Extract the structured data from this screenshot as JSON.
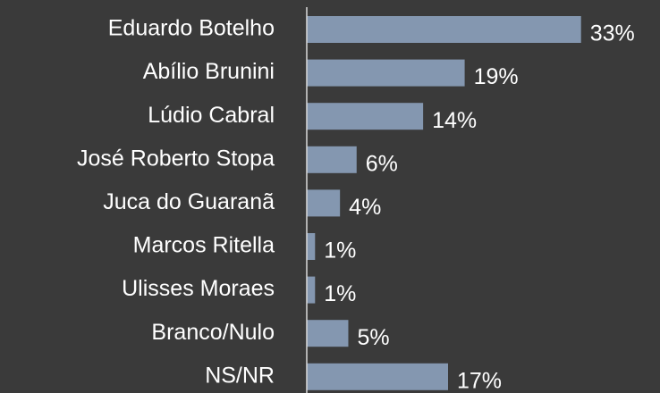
{
  "chart_data": {
    "type": "hbar",
    "categories": [
      "Eduardo Botelho",
      "Abílio Brunini",
      "Lúdio Cabral",
      "José Roberto Stopa",
      "Juca do Guaranã",
      "Marcos Ritella",
      "Ulisses Moraes",
      "Branco/Nulo",
      "NS/NR"
    ],
    "values": [
      33,
      19,
      14,
      6,
      4,
      1,
      1,
      5,
      17
    ],
    "value_labels": [
      "33%",
      "19%",
      "14%",
      "6%",
      "4%",
      "1%",
      "1%",
      "5%",
      "17%"
    ],
    "color": "#8497b0",
    "xlim": [
      0,
      42.5
    ]
  }
}
